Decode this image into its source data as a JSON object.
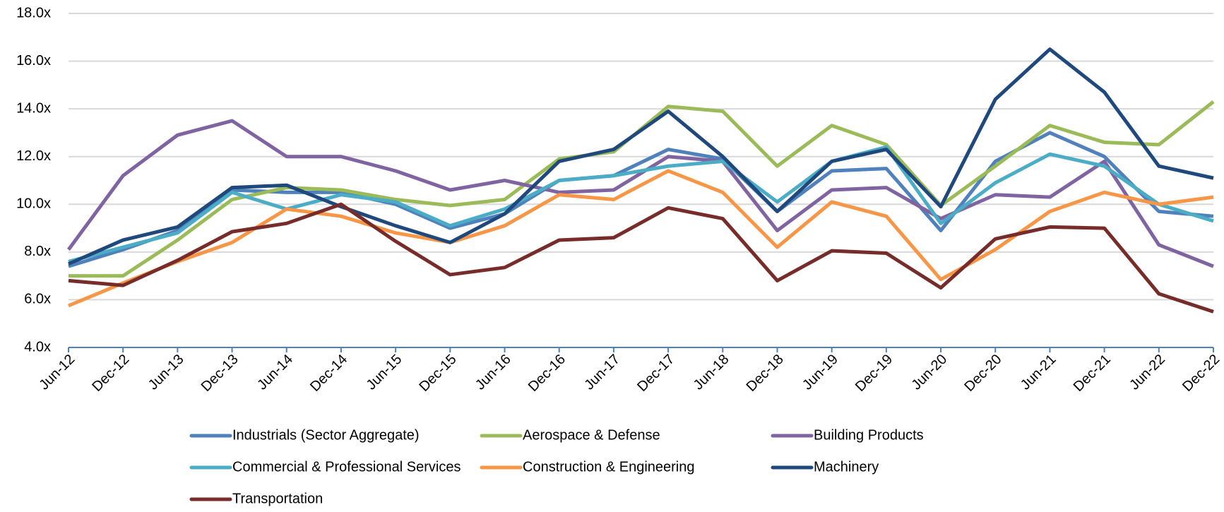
{
  "chart_data": {
    "type": "line",
    "categories": [
      "Jun-12",
      "Dec-12",
      "Jun-13",
      "Dec-13",
      "Jun-14",
      "Dec-14",
      "Jun-15",
      "Dec-15",
      "Jun-16",
      "Dec-16",
      "Jun-17",
      "Dec-17",
      "Jun-18",
      "Dec-18",
      "Jun-19",
      "Dec-19",
      "Jun-20",
      "Dec-20",
      "Jun-21",
      "Dec-21",
      "Jun-22",
      "Dec-22"
    ],
    "series": [
      {
        "name": "Industrials (Sector Aggregate)",
        "color": "#4f81bd",
        "values": [
          7.4,
          8.1,
          8.9,
          10.6,
          10.5,
          10.5,
          10.0,
          9.0,
          9.6,
          11.0,
          11.2,
          12.3,
          11.9,
          9.7,
          11.4,
          11.5,
          8.9,
          11.8,
          13.0,
          12.0,
          9.7,
          9.5
        ]
      },
      {
        "name": "Aerospace & Defense",
        "color": "#9bbb59",
        "values": [
          7.0,
          7.0,
          8.5,
          10.2,
          10.7,
          10.6,
          10.2,
          9.95,
          10.2,
          11.9,
          12.2,
          14.1,
          13.9,
          11.6,
          13.3,
          12.5,
          9.95,
          11.6,
          13.3,
          12.6,
          12.5,
          14.3
        ]
      },
      {
        "name": "Building Products",
        "color": "#8064a2",
        "values": [
          8.1,
          11.2,
          12.9,
          13.5,
          12.0,
          12.0,
          11.4,
          10.6,
          11.0,
          10.5,
          10.6,
          12.0,
          11.8,
          8.9,
          10.6,
          10.7,
          9.4,
          10.4,
          10.3,
          11.8,
          8.3,
          7.4
        ]
      },
      {
        "name": "Commercial & Professional Services",
        "color": "#4bacc6",
        "values": [
          7.6,
          8.2,
          8.8,
          10.5,
          9.8,
          10.4,
          10.1,
          9.1,
          9.8,
          11.0,
          11.2,
          11.6,
          11.8,
          10.1,
          11.8,
          12.4,
          9.2,
          10.9,
          12.1,
          11.6,
          10.0,
          9.3
        ]
      },
      {
        "name": "Construction & Engineering",
        "color": "#f79646",
        "values": [
          5.75,
          6.7,
          7.6,
          8.4,
          9.8,
          9.5,
          8.8,
          8.4,
          9.1,
          10.4,
          10.2,
          11.4,
          10.5,
          8.2,
          10.1,
          9.5,
          6.85,
          8.1,
          9.7,
          10.5,
          10.0,
          10.3
        ]
      },
      {
        "name": "Machinery",
        "color": "#1f497d",
        "values": [
          7.5,
          8.5,
          9.05,
          10.7,
          10.8,
          9.9,
          9.1,
          8.4,
          9.6,
          11.8,
          12.3,
          13.9,
          12.0,
          9.7,
          11.8,
          12.3,
          9.9,
          14.4,
          16.5,
          14.7,
          11.6,
          11.1
        ]
      },
      {
        "name": "Transportation",
        "color": "#772c2a",
        "values": [
          6.8,
          6.6,
          7.65,
          8.85,
          9.2,
          10.0,
          8.45,
          7.05,
          7.35,
          8.5,
          8.6,
          9.85,
          9.4,
          6.8,
          8.05,
          7.95,
          6.5,
          8.55,
          9.05,
          9.0,
          6.25,
          5.5
        ]
      }
    ],
    "ylim": [
      4,
      18
    ],
    "yticks": [
      {
        "value": 4,
        "label": "4.0x"
      },
      {
        "value": 6,
        "label": "6.0x"
      },
      {
        "value": 8,
        "label": "8.0x"
      },
      {
        "value": 10,
        "label": "10.0x"
      },
      {
        "value": 12,
        "label": "12.0x"
      },
      {
        "value": 14,
        "label": "14.0x"
      },
      {
        "value": 16,
        "label": "16.0x"
      },
      {
        "value": 18,
        "label": "18.0x"
      }
    ],
    "grid": true
  }
}
